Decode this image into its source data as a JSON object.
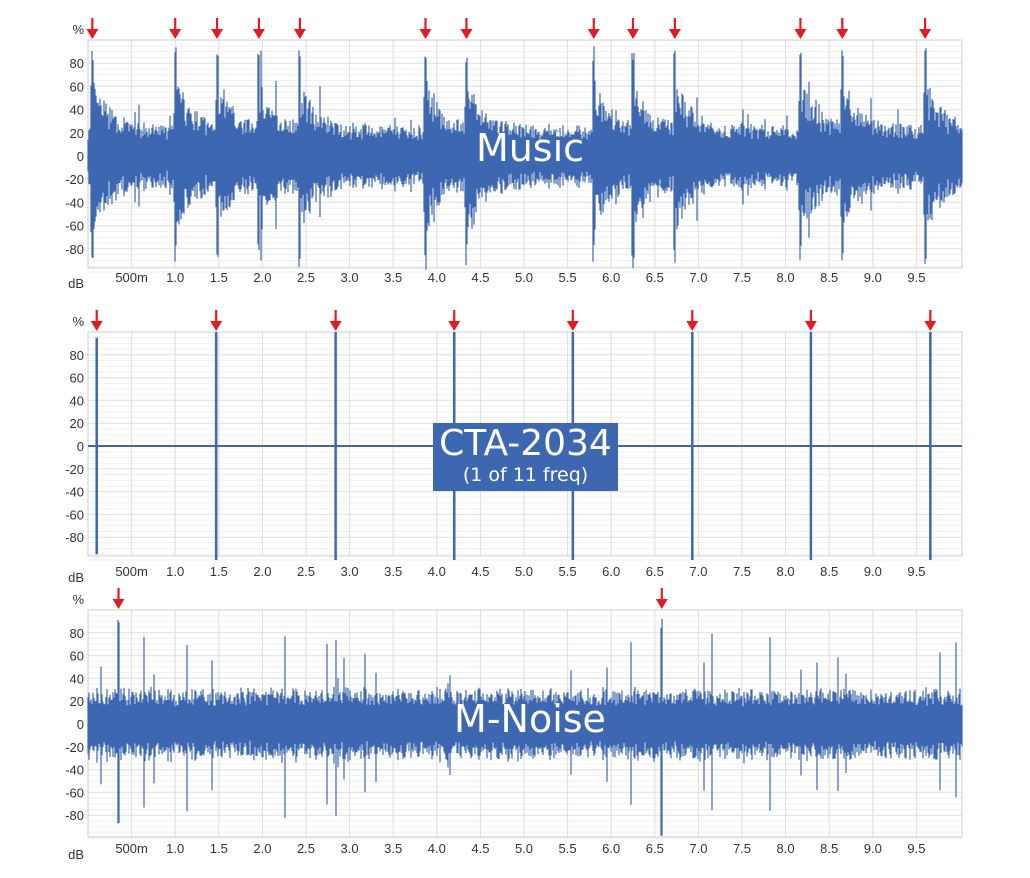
{
  "colors": {
    "waveform": "#3e67b1",
    "marker": "#e31b23",
    "grid": "#dcdcdc",
    "axis_text": "#333333"
  },
  "chart_data": [
    {
      "type": "area",
      "title": "Music",
      "ylabel": "%",
      "xlabel": "dB",
      "ylim": [
        -100,
        100
      ],
      "xlim": [
        0,
        10
      ],
      "yticks": [
        "80",
        "60",
        "40",
        "20",
        "0",
        "-20",
        "-40",
        "-60",
        "-80"
      ],
      "xticks": [
        "500m",
        "1.0",
        "1.5",
        "2.0",
        "2.5",
        "3.0",
        "3.5",
        "4.0",
        "4.5",
        "5.0",
        "5.5",
        "6.0",
        "6.5",
        "7.0",
        "7.5",
        "8.0",
        "8.5",
        "9.0",
        "9.5"
      ],
      "peak_markers_s": [
        0.05,
        1.0,
        1.48,
        1.96,
        2.43,
        3.87,
        4.34,
        5.8,
        6.25,
        6.73,
        8.17,
        8.65,
        9.6
      ],
      "envelope_description": "Dense waveform, baseline ~±25-40%, periodic transient peaks reaching ~95% at marker positions"
    },
    {
      "type": "line",
      "title": "CTA-2034",
      "subtitle": "(1 of 11 freq)",
      "ylabel": "%",
      "xlabel": "dB",
      "ylim": [
        -100,
        100
      ],
      "xlim": [
        0,
        10
      ],
      "yticks": [
        "80",
        "60",
        "40",
        "20",
        "0",
        "-20",
        "-40",
        "-60",
        "-80"
      ],
      "xticks": [
        "500m",
        "1.0",
        "1.5",
        "2.0",
        "2.5",
        "3.0",
        "3.5",
        "4.0",
        "4.5",
        "5.0",
        "5.5",
        "6.0",
        "6.5",
        "7.0",
        "7.5",
        "8.0",
        "8.5",
        "9.0",
        "9.5"
      ],
      "peak_markers_s": [
        0.1,
        1.47,
        2.84,
        4.2,
        5.56,
        6.93,
        8.29,
        9.66
      ],
      "impulse_heights": [
        95,
        100,
        100,
        100,
        100,
        100,
        100,
        100
      ],
      "envelope_description": "Flat zero line with isolated full-scale impulses at marker positions"
    },
    {
      "type": "area",
      "title": "M-Noise",
      "ylabel": "%",
      "xlabel": "dB",
      "ylim": [
        -100,
        100
      ],
      "xlim": [
        0,
        10
      ],
      "yticks": [
        "80",
        "60",
        "40",
        "20",
        "0",
        "-20",
        "-40",
        "-60",
        "-80"
      ],
      "xticks": [
        "500m",
        "1.0",
        "1.5",
        "2.0",
        "2.5",
        "3.0",
        "3.5",
        "4.0",
        "4.5",
        "5.0",
        "5.5",
        "6.0",
        "6.5",
        "7.0",
        "7.5",
        "8.0",
        "8.5",
        "9.0",
        "9.5"
      ],
      "peak_markers_s": [
        0.35,
        6.58
      ],
      "envelope_description": "Dense noise, baseline ~±30-40%, sporadic spikes to ~80-100%"
    }
  ],
  "panels": [
    {
      "label": "Music",
      "y_unit": "%",
      "x_unit": "dB"
    },
    {
      "label": "CTA-2034",
      "sublabel": "(1 of 11 freq)",
      "y_unit": "%",
      "x_unit": "dB"
    },
    {
      "label": "M-Noise",
      "y_unit": "%",
      "x_unit": "dB"
    }
  ]
}
